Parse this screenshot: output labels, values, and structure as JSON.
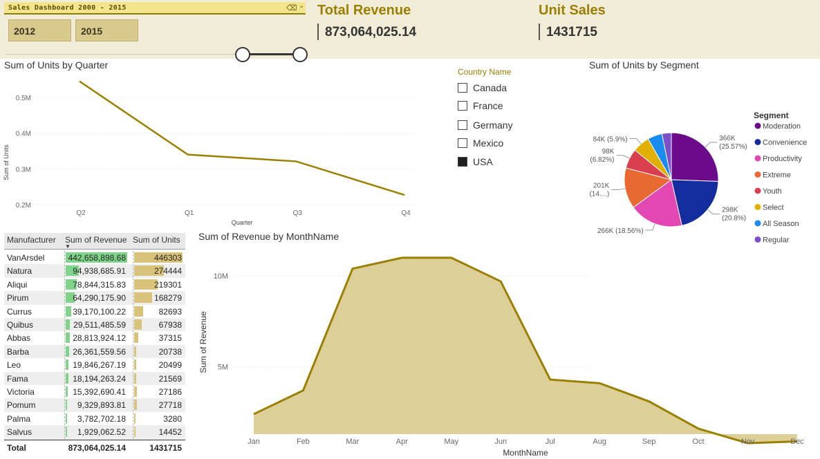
{
  "slicer": {
    "title": "Sales Dashboard 2000 - 2015",
    "start_year": "2012",
    "end_year": "2015",
    "eraser_icon": "eraser-icon",
    "chevron_icon": "chevron-down-icon"
  },
  "kpis": {
    "revenue_title": "Total Revenue",
    "revenue_value": "873,064,025.14",
    "units_title": "Unit Sales",
    "units_value": "1431715"
  },
  "country_filter": {
    "title": "Country Name",
    "items": [
      {
        "label": "Canada",
        "checked": false
      },
      {
        "label": "France",
        "checked": false
      },
      {
        "label": "Germany",
        "checked": false
      },
      {
        "label": "Mexico",
        "checked": false
      },
      {
        "label": "USA",
        "checked": true
      }
    ]
  },
  "manufacturer_table": {
    "headers": [
      "Manufacturer",
      "Sum of Revenue",
      "Sum of Units"
    ],
    "rows": [
      {
        "name": "VanArsdel",
        "revenue": "442,658,898.68",
        "units": "446303"
      },
      {
        "name": "Natura",
        "revenue": "94,938,685.91",
        "units": "274444"
      },
      {
        "name": "Aliqui",
        "revenue": "78,844,315.83",
        "units": "219301"
      },
      {
        "name": "Pirum",
        "revenue": "64,290,175.90",
        "units": "168279"
      },
      {
        "name": "Currus",
        "revenue": "39,170,100.22",
        "units": "82693"
      },
      {
        "name": "Quibus",
        "revenue": "29,511,485.59",
        "units": "67938"
      },
      {
        "name": "Abbas",
        "revenue": "28,813,924.12",
        "units": "37315"
      },
      {
        "name": "Barba",
        "revenue": "26,361,559.56",
        "units": "20738"
      },
      {
        "name": "Leo",
        "revenue": "19,846,267.19",
        "units": "20499"
      },
      {
        "name": "Fama",
        "revenue": "18,194,263.24",
        "units": "21569"
      },
      {
        "name": "Victoria",
        "revenue": "15,392,690.41",
        "units": "27186"
      },
      {
        "name": "Pomum",
        "revenue": "9,329,893.81",
        "units": "27718"
      },
      {
        "name": "Palma",
        "revenue": "3,782,702.18",
        "units": "3280"
      },
      {
        "name": "Salvus",
        "revenue": "1,929,062.52",
        "units": "14452"
      }
    ],
    "total": {
      "label": "Total",
      "revenue": "873,064,025.14",
      "units": "1431715"
    },
    "revenue_color": "#7fd48a",
    "units_color": "#d9c27a"
  },
  "chart_data": [
    {
      "type": "line",
      "title": "Sum of Units by Quarter",
      "xlabel": "Quarter",
      "ylabel": "Sum of Units",
      "categories": [
        "Q2",
        "Q1",
        "Q3",
        "Q4"
      ],
      "values": [
        545000,
        340000,
        321000,
        227000
      ],
      "yticks": [
        "0.2M",
        "0.3M",
        "0.4M",
        "0.5M"
      ],
      "ylim": [
        200000,
        550000
      ],
      "color": "#9a7f00"
    },
    {
      "type": "area",
      "title": "Sum of Revenue by MonthName",
      "xlabel": "MonthName",
      "ylabel": "Sum of Revenue",
      "categories": [
        "Jan",
        "Feb",
        "Mar",
        "Apr",
        "May",
        "Jun",
        "Jul",
        "Aug",
        "Sep",
        "Oct",
        "Nov",
        "Dec"
      ],
      "values": [
        2400000,
        3700000,
        10400000,
        11000000,
        11000000,
        9700000,
        4300000,
        4100000,
        3100000,
        1600000,
        800000,
        900000
      ],
      "yticks": [
        "5M",
        "10M"
      ],
      "ylim": [
        1300000,
        11300000
      ],
      "line_color": "#9a7f00",
      "fill_color": "#dccf98"
    },
    {
      "type": "pie",
      "title": "Sum of Units by Segment",
      "legend_title": "Segment",
      "legend_position": "right",
      "slices": [
        {
          "name": "Moderation",
          "value": 366000,
          "label": "366K",
          "pct": "(25.57%)",
          "color": "#6b0b8c"
        },
        {
          "name": "Convenience",
          "value": 298000,
          "label": "298K",
          "pct": "(20.8%)",
          "color": "#142d9e"
        },
        {
          "name": "Productivity",
          "value": 266000,
          "label": "266K (18.56%)",
          "pct": "",
          "color": "#e247b4"
        },
        {
          "name": "Extreme",
          "value": 201000,
          "label": "201K",
          "pct": "(14....)",
          "color": "#e86a32"
        },
        {
          "name": "Youth",
          "value": 98000,
          "label": "98K",
          "pct": "(6.82%)",
          "color": "#d93f4f"
        },
        {
          "name": "Select",
          "value": 84000,
          "label": "84K (5.9%)",
          "pct": "",
          "color": "#e0b000"
        },
        {
          "name": "All Season",
          "value": 72000,
          "label": "",
          "pct": "",
          "color": "#1a8cf0"
        },
        {
          "name": "Regular",
          "value": 46000,
          "label": "",
          "pct": "",
          "color": "#7a4fc9"
        }
      ]
    }
  ]
}
